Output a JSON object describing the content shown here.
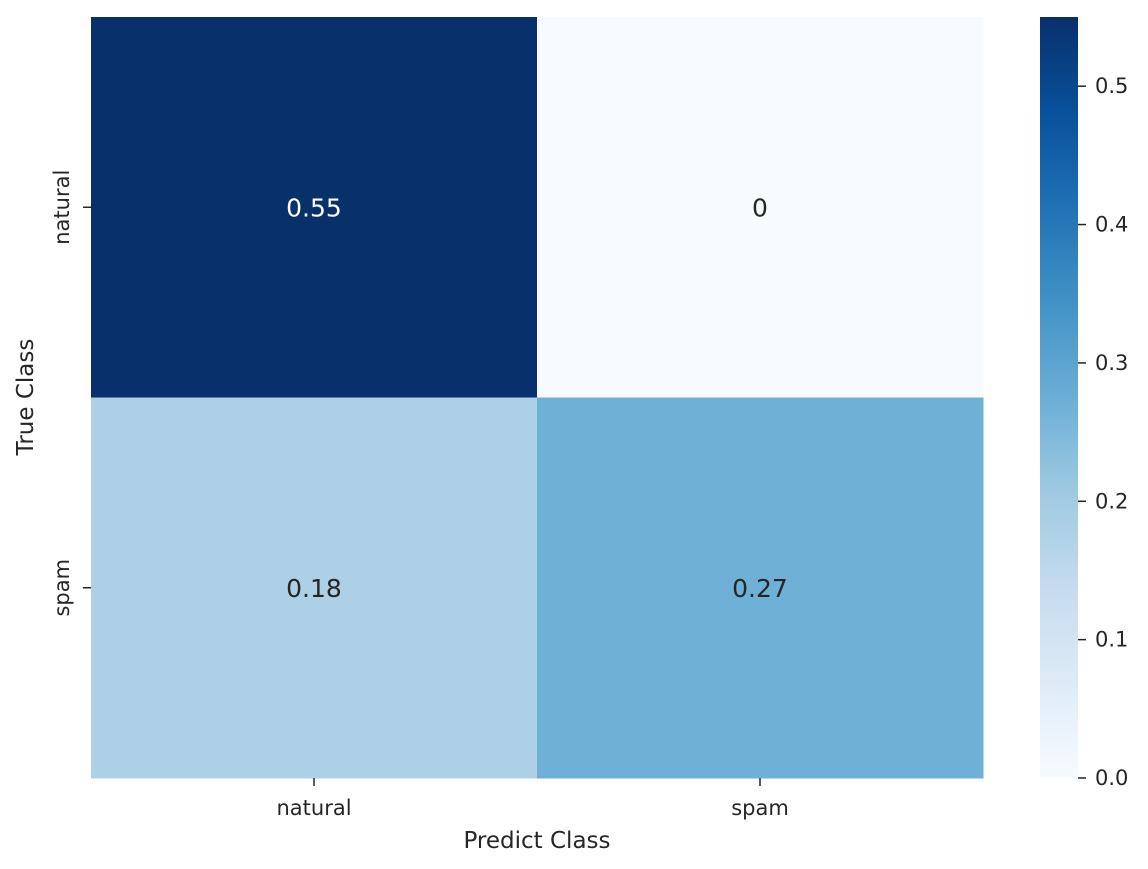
{
  "chart_data": {
    "type": "heatmap",
    "x_categories": [
      "natural",
      "spam"
    ],
    "y_categories": [
      "natural",
      "spam"
    ],
    "values": [
      [
        0.55,
        0
      ],
      [
        0.18,
        0.27
      ]
    ],
    "cell_labels": [
      [
        "0.55",
        "0"
      ],
      [
        "0.18",
        "0.27"
      ]
    ],
    "xlabel": "Predict Class",
    "ylabel": "True Class",
    "colormap": "Blues",
    "colorbar": {
      "min": 0,
      "max": 0.55,
      "ticks": [
        0,
        0.1,
        0.2,
        0.3,
        0.4,
        0.5
      ],
      "tick_labels": [
        "0.0",
        "0.1",
        "0.2",
        "0.3",
        "0.4",
        "0.5"
      ]
    }
  }
}
